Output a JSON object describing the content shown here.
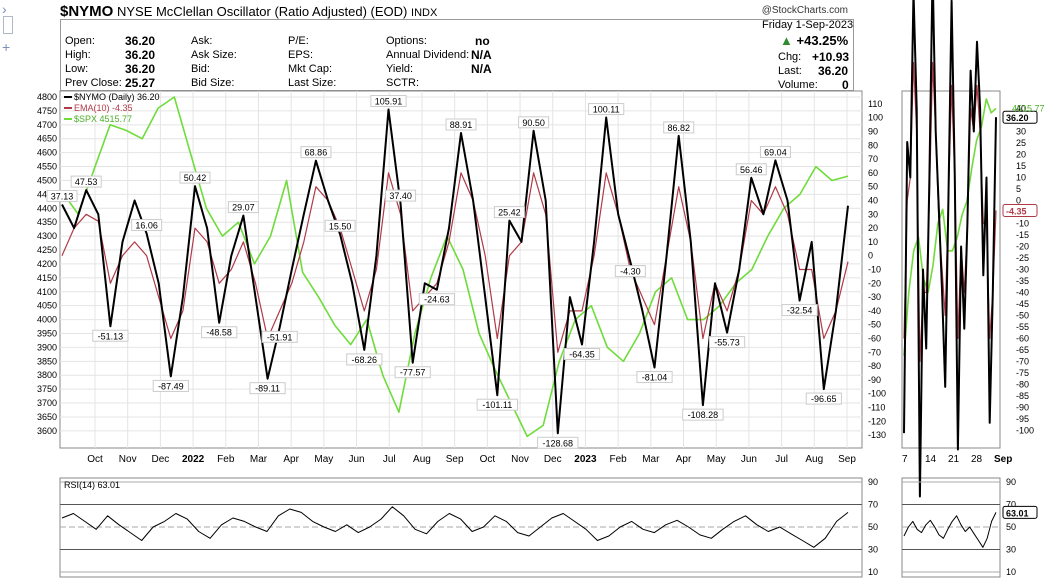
{
  "header": {
    "symbol": "$NYMO",
    "name": "NYSE McClellan Oscillator (Ratio Adjusted) (EOD)",
    "exchange": "INDX",
    "brand": "@StockCharts.com",
    "date": "Friday  1-Sep-2023",
    "change_pct": "+43.25%",
    "chg_label": "Chg:",
    "chg": "+10.93",
    "last_label": "Last:",
    "last": "36.20",
    "volume_label": "Volume:",
    "volume": "0"
  },
  "quote": {
    "open_label": "Open:",
    "open": "36.20",
    "high_label": "High:",
    "high": "36.20",
    "low_label": "Low:",
    "low": "36.20",
    "prev_label": "Prev Close:",
    "prev": "25.27",
    "ask_label": "Ask:",
    "asksize_label": "Ask Size:",
    "bid_label": "Bid:",
    "bidsize_label": "Bid Size:",
    "pe_label": "P/E:",
    "eps_label": "EPS:",
    "mktcap_label": "Mkt Cap:",
    "lastsize_label": "Last Size:",
    "options_label": "Options:",
    "options": "no",
    "div_label": "Annual Dividend:",
    "div": "N/A",
    "yield_label": "Yield:",
    "yield": "N/A",
    "sctr_label": "SCTR:"
  },
  "legend": {
    "nymo": "$NYMO (Daily) 36.20",
    "ema": "EMA(10) -4.35",
    "spx": "$SPX 4515.77",
    "rsi": "RSI(14) 63.01"
  },
  "colors": {
    "nymo": "#000000",
    "ema": "#b03a48",
    "spx": "#6fdc3c",
    "grid": "#e4e4e4"
  },
  "chart_data": [
    {
      "type": "line",
      "title": "$NYMO NYSE McClellan Oscillator (Ratio Adjusted) (EOD)",
      "x_ticks": [
        "Oct",
        "Nov",
        "Dec",
        "2022",
        "Feb",
        "Mar",
        "Apr",
        "May",
        "Jun",
        "Jul",
        "Aug",
        "Sep",
        "Oct",
        "Nov",
        "Dec",
        "2023",
        "Feb",
        "Mar",
        "Apr",
        "May",
        "Jun",
        "Jul",
        "Aug",
        "Sep"
      ],
      "x_ticks_zoom": [
        "7",
        "14",
        "21",
        "28",
        "Sep"
      ],
      "left_axis": {
        "label": "$SPX",
        "ylim": [
          3560,
          4800
        ],
        "ticks": [
          3600,
          3650,
          3700,
          3750,
          3800,
          3850,
          3900,
          3950,
          4000,
          4050,
          4100,
          4150,
          4200,
          4250,
          4300,
          4350,
          4400,
          4450,
          4500,
          4550,
          4600,
          4650,
          4700,
          4750,
          4800
        ]
      },
      "right_axis": {
        "label": "$NYMO",
        "ylim": [
          -135,
          115
        ],
        "ticks": [
          110,
          100,
          90,
          80,
          70,
          60,
          50,
          40,
          30,
          20,
          10,
          0,
          -10,
          -20,
          -30,
          -40,
          -50,
          -60,
          -70,
          -80,
          -90,
          -100,
          -110,
          -120,
          -130
        ]
      },
      "zoom_axis_ticks": [
        40,
        35,
        30,
        25,
        20,
        15,
        10,
        5,
        0,
        -5,
        -10,
        -15,
        -20,
        -25,
        -30,
        -35,
        -40,
        -45,
        -50,
        -55,
        -60,
        -65,
        -70,
        -75,
        -80,
        -85,
        -90,
        -95,
        -100
      ],
      "last_value_tags": {
        "nymo": "36.20",
        "ema": "-4.35",
        "zoom_nymo": "36.20",
        "zoom_ema": "-4.35",
        "zoom_spx": "4515.77"
      },
      "annotations": [
        "37.13",
        "47.53",
        "-51.13",
        "16.06",
        "-87.49",
        "50.42",
        "-48.58",
        "29.07",
        "-89.11",
        "-51.91",
        "68.86",
        "15.50",
        "-68.26",
        "105.91",
        "37.40",
        "-77.57",
        "-24.63",
        "88.91",
        "-101.11",
        "25.42",
        "90.50",
        "-128.68",
        "-64.35",
        "100.11",
        "-4.30",
        "-81.04",
        "86.82",
        "-108.28",
        "-55.73",
        "56.46",
        "69.04",
        "-32.54",
        "-96.65"
      ],
      "series": [
        {
          "name": "$NYMO (Daily)",
          "values": [
            37.13,
            20,
            47.53,
            30,
            -51.13,
            10,
            40,
            16.06,
            -20,
            -87.49,
            -30,
            50.42,
            20,
            -48.58,
            0,
            29.07,
            -30,
            -89.11,
            -51.91,
            -10,
            30,
            68.86,
            40,
            15.5,
            -20,
            -68.26,
            0,
            105.91,
            37.4,
            -77.57,
            -20,
            -24.63,
            20,
            88.91,
            40,
            -30,
            -101.11,
            25.42,
            10,
            90.5,
            40,
            -128.68,
            -30,
            -64.35,
            10,
            100.11,
            30,
            -4.3,
            -40,
            -81.04,
            0,
            86.82,
            10,
            -108.28,
            -20,
            -55.73,
            -10,
            56.46,
            30,
            69.04,
            40,
            -32.54,
            10,
            -96.65,
            -40,
            36.2
          ]
        },
        {
          "name": "EMA(10)",
          "values": [
            0,
            20,
            30,
            25,
            -20,
            0,
            10,
            0,
            -30,
            -60,
            -40,
            20,
            10,
            -20,
            -10,
            10,
            -20,
            -60,
            -40,
            -20,
            10,
            50,
            40,
            20,
            -10,
            -40,
            -10,
            60,
            30,
            -40,
            -30,
            -20,
            10,
            60,
            40,
            0,
            -60,
            0,
            10,
            60,
            30,
            -70,
            -40,
            -40,
            0,
            60,
            30,
            -10,
            -30,
            -50,
            0,
            50,
            10,
            -60,
            -20,
            -40,
            -10,
            40,
            30,
            50,
            30,
            -10,
            -10,
            -60,
            -40,
            -4.35
          ]
        },
        {
          "name": "$SPX",
          "values": [
            4460,
            4380,
            4540,
            4700,
            4680,
            4650,
            4760,
            4800,
            4600,
            4400,
            4300,
            4350,
            4200,
            4300,
            4500,
            4170,
            4080,
            3980,
            3910,
            4000,
            3800,
            3667,
            3950,
            4150,
            4300,
            4180,
            3950,
            3820,
            3700,
            3580,
            3620,
            3850,
            4000,
            4050,
            3900,
            3850,
            3950,
            4100,
            4150,
            4000,
            4000,
            4050,
            4130,
            4180,
            4300,
            4400,
            4450,
            4550,
            4500,
            4515.77
          ]
        }
      ]
    },
    {
      "type": "line",
      "title": "RSI(14) 63.01",
      "ylim": [
        10,
        90
      ],
      "ticks": [
        90,
        70,
        50,
        30,
        10
      ],
      "series": [
        {
          "name": "RSI(14)",
          "values": [
            58,
            62,
            55,
            48,
            60,
            52,
            45,
            38,
            50,
            55,
            62,
            57,
            46,
            40,
            52,
            58,
            55,
            50,
            46,
            60,
            66,
            63,
            55,
            50,
            46,
            52,
            45,
            50,
            57,
            68,
            60,
            48,
            44,
            55,
            62,
            57,
            46,
            50,
            60,
            55,
            45,
            42,
            50,
            58,
            62,
            55,
            48,
            38,
            42,
            50,
            55,
            48,
            45,
            52,
            56,
            50,
            43,
            40,
            48,
            55,
            60,
            52,
            46,
            50,
            44,
            38,
            32,
            40,
            55,
            63.01
          ]
        }
      ],
      "last_value_tag": "63.01"
    }
  ]
}
